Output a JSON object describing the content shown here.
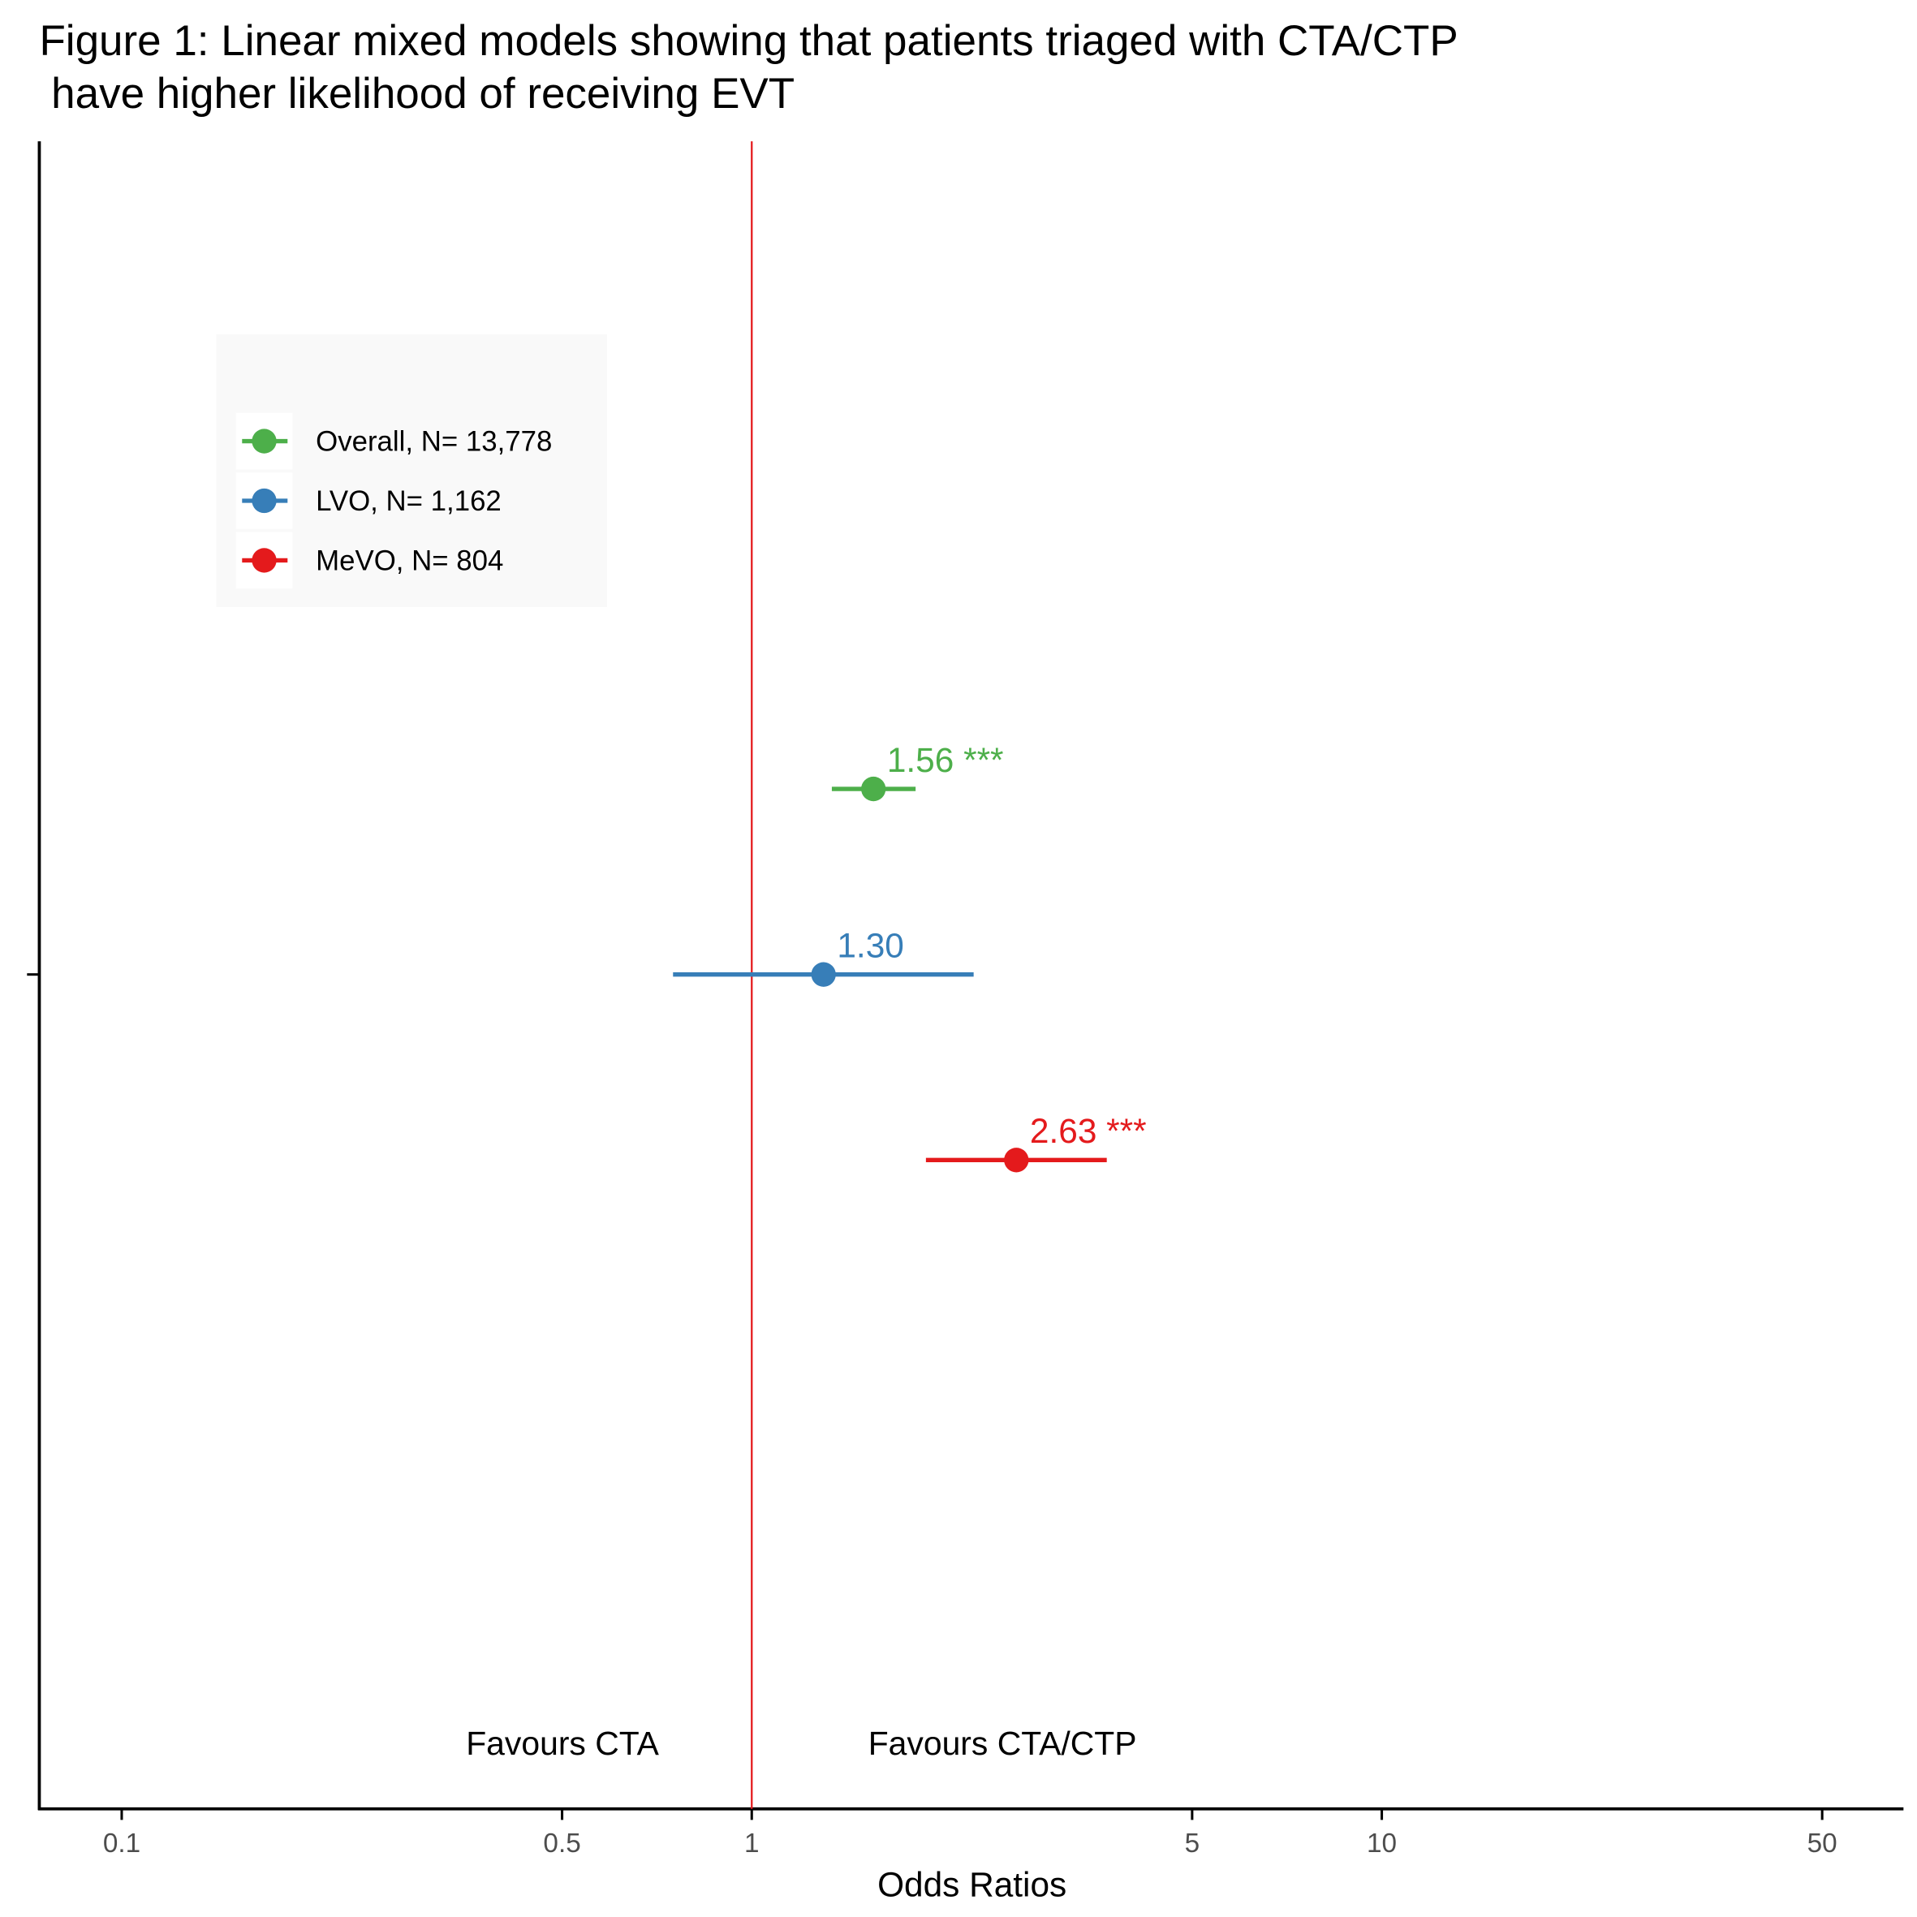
{
  "chart_data": {
    "type": "forest",
    "title": [
      "Figure 1: Linear mixed models showing that patients triaged with CTA/CTP",
      " have higher likelihood of receiving EVT"
    ],
    "x_label": "Odds Ratios",
    "x_log": true,
    "xlim": [
      0.074,
      67
    ],
    "xticks": [
      0.1,
      0.5,
      1,
      5,
      10,
      50
    ],
    "reference_line": 1,
    "reference_color": "#e41a1c",
    "annotations": [
      "Favours CTA",
      "Favours CTA/CTP"
    ],
    "legend": "top-left",
    "series": [
      {
        "name": "Overall, N= 13,778",
        "color": "#4daf4a",
        "values": [
          1.56
        ],
        "value_labels": [
          "1.56 ***"
        ],
        "lower": [
          1.34
        ],
        "upper": [
          1.82
        ]
      },
      {
        "name": "LVO, N= 1,162",
        "color": "#377eb8",
        "values": [
          1.3
        ],
        "value_labels": [
          "1.30"
        ],
        "lower": [
          0.75
        ],
        "upper": [
          2.25
        ]
      },
      {
        "name": "MeVO, N= 804",
        "color": "#e41a1c",
        "values": [
          2.63
        ],
        "value_labels": [
          "2.63 ***"
        ],
        "lower": [
          1.89
        ],
        "upper": [
          3.66
        ]
      }
    ]
  }
}
